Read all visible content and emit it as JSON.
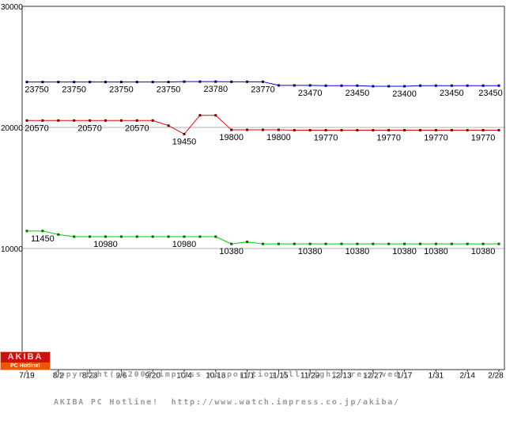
{
  "chart_data": {
    "type": "line",
    "title": "",
    "ylim": [
      0,
      30000
    ],
    "y_ticks": [
      30000,
      20000,
      10000
    ],
    "y_gridlines": [
      20000,
      10000
    ],
    "n_points": 31,
    "x_tick_labels": [
      "7/19",
      "8/2",
      "8/23",
      "9/6",
      "9/20",
      "10/4",
      "10/18",
      "11/1",
      "11/15",
      "11/29",
      "12/13",
      "12/27",
      "1/17",
      "1/31",
      "2/14",
      "2/28"
    ],
    "colors": {
      "grid": "#b0b0b0",
      "border": "#303030",
      "label_text": "#000000"
    },
    "series": [
      {
        "name": "blue",
        "color": "#0000ee",
        "marker_color": "#000066",
        "values": [
          23750,
          23750,
          23750,
          23750,
          23750,
          23750,
          23750,
          23750,
          23750,
          23750,
          23780,
          23780,
          23780,
          23770,
          23770,
          23770,
          23470,
          23470,
          23470,
          23450,
          23450,
          23450,
          23400,
          23400,
          23400,
          23450,
          23450,
          23450,
          23450,
          23450,
          23450
        ],
        "labels": [
          {
            "text": "23750",
            "i": 0
          },
          {
            "text": "23750",
            "i": 3
          },
          {
            "text": "23750",
            "i": 6
          },
          {
            "text": "23750",
            "i": 9
          },
          {
            "text": "23780",
            "i": 12
          },
          {
            "text": "23770",
            "i": 15
          },
          {
            "text": "23470",
            "i": 18
          },
          {
            "text": "23450",
            "i": 21
          },
          {
            "text": "23400",
            "i": 24
          },
          {
            "text": "23450",
            "i": 27
          },
          {
            "text": "23450",
            "i": 30
          }
        ]
      },
      {
        "name": "red",
        "color": "#ee0000",
        "marker_color": "#660000",
        "values": [
          20570,
          20570,
          20570,
          20570,
          20570,
          20570,
          20570,
          20570,
          20570,
          20150,
          19450,
          21000,
          21000,
          19800,
          19800,
          19800,
          19800,
          19770,
          19770,
          19770,
          19770,
          19770,
          19770,
          19770,
          19770,
          19770,
          19770,
          19770,
          19770,
          19770,
          19770
        ],
        "labels": [
          {
            "text": "20570",
            "i": 0
          },
          {
            "text": "20570",
            "i": 4
          },
          {
            "text": "20570",
            "i": 7
          },
          {
            "text": "19450",
            "i": 10
          },
          {
            "text": "19800",
            "i": 13
          },
          {
            "text": "19800",
            "i": 16
          },
          {
            "text": "19770",
            "i": 19
          },
          {
            "text": "19770",
            "i": 23
          },
          {
            "text": "19770",
            "i": 26
          },
          {
            "text": "19770",
            "i": 29
          }
        ]
      },
      {
        "name": "green",
        "color": "#00cc00",
        "marker_color": "#006600",
        "values": [
          11450,
          11450,
          11150,
          10980,
          10980,
          10980,
          10980,
          10980,
          10980,
          10980,
          10980,
          10980,
          10980,
          10380,
          10550,
          10380,
          10380,
          10380,
          10380,
          10380,
          10380,
          10380,
          10380,
          10380,
          10380,
          10380,
          10380,
          10380,
          10380,
          10380,
          10380
        ],
        "labels": [
          {
            "text": "11450",
            "i": 1
          },
          {
            "text": "10980",
            "i": 5
          },
          {
            "text": "10980",
            "i": 10
          },
          {
            "text": "10380",
            "i": 13
          },
          {
            "text": "10380",
            "i": 18
          },
          {
            "text": "10380",
            "i": 21
          },
          {
            "text": "10380",
            "i": 24
          },
          {
            "text": "10380",
            "i": 26
          },
          {
            "text": "10380",
            "i": 29
          }
        ]
      }
    ]
  },
  "footer": {
    "logo_line1": "AKIBA",
    "logo_line2": "PC Hotline!",
    "copyright_line1": "Copyright(c)2003 impress corporation All rights reserved.",
    "copyright_line2": "AKIBA PC Hotline!  http://www.watch.impress.co.jp/akiba/",
    "text_color": "#9a9a9a",
    "logo_bg": "#cc1111",
    "logo_strip_bg": "#ee5500"
  }
}
